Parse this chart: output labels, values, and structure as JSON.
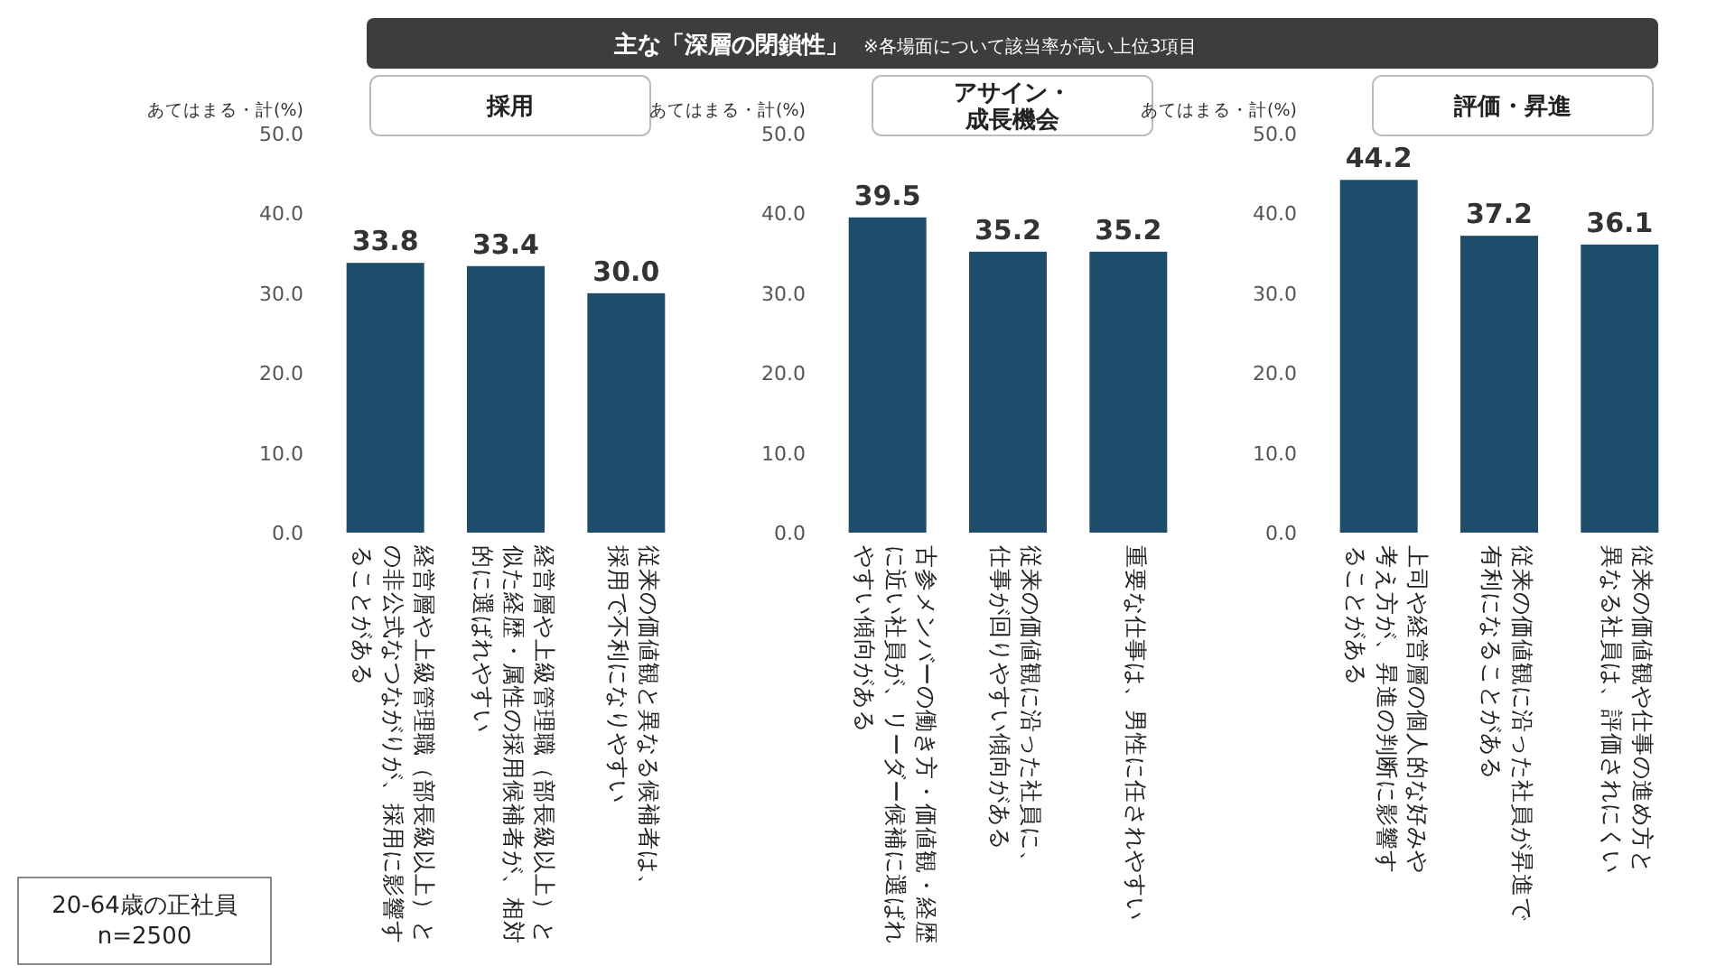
{
  "chart_data": [
    {
      "type": "bar",
      "title": "採用",
      "ylabel": "あてはまる・計(%)",
      "categories": [
        "経営層や上級管理職（部長級以上）との非公式なつながりが、採用に影響することがある",
        "経営層や上級管理職（部長級以上）と似た経歴・属性の採用候補者が、相対的に選ばれやすい",
        "従来の価値観と異なる候補者は、採用で不利になりやすい"
      ],
      "values": [
        33.8,
        33.4,
        30.0
      ],
      "value_labels": [
        "33.8",
        "33.4",
        "30.0"
      ],
      "color": "#1e4d6b",
      "ylim": [
        0,
        50
      ],
      "yticks": [
        {
          "value": 0,
          "label": "0.0"
        },
        {
          "value": 10,
          "label": "10.0"
        },
        {
          "value": 20,
          "label": "20.0"
        },
        {
          "value": 30,
          "label": "30.0"
        },
        {
          "value": 40,
          "label": "40.0"
        },
        {
          "value": 50,
          "label": "50.0"
        }
      ],
      "annotations": [
        "主な「深層の閉鎖性」",
        "※各場面について該当率が高い上位3項目",
        "20-64歳の正社員\nn=2500"
      ]
    },
    {
      "type": "bar",
      "title": "アサイン・成長機会",
      "ylabel": "あてはまる・計(%)",
      "categories": [
        "古参メンバーの働き方・価値観・経歴に近い社員が、リーダー候補に選ばれやすい傾向がある",
        "従来の価値観に沿った社員に、仕事が回りやすい傾向がある",
        "重要な仕事は、男性に任されやすい"
      ],
      "values": [
        39.5,
        35.2,
        35.2
      ],
      "value_labels": [
        "39.5",
        "35.2",
        "35.2"
      ],
      "color": "#1e4d6b",
      "ylim": [
        0,
        50
      ],
      "yticks": [
        {
          "value": 0,
          "label": "0.0"
        },
        {
          "value": 10,
          "label": "10.0"
        },
        {
          "value": 20,
          "label": "20.0"
        },
        {
          "value": 30,
          "label": "30.0"
        },
        {
          "value": 40,
          "label": "40.0"
        },
        {
          "value": 50,
          "label": "50.0"
        }
      ]
    },
    {
      "type": "bar",
      "title": "評価・昇進",
      "ylabel": "あてはまる・計(%)",
      "categories": [
        "上司や経営層の個人的な好みや考え方が、昇進の判断に影響することがある",
        "従来の価値観に沿った社員が昇進で有利になることがある",
        "従来の価値観や仕事の進め方と異なる社員は、評価されにくい"
      ],
      "values": [
        44.2,
        37.2,
        36.1
      ],
      "value_labels": [
        "44.2",
        "37.2",
        "36.1"
      ],
      "color": "#1e4d6b",
      "ylim": [
        0,
        50
      ],
      "yticks": [
        {
          "value": 0,
          "label": "0.0"
        },
        {
          "value": 10,
          "label": "10.0"
        },
        {
          "value": 20,
          "label": "20.0"
        },
        {
          "value": 30,
          "label": "30.0"
        },
        {
          "value": 40,
          "label": "40.0"
        },
        {
          "value": 50,
          "label": "50.0"
        }
      ]
    }
  ]
}
